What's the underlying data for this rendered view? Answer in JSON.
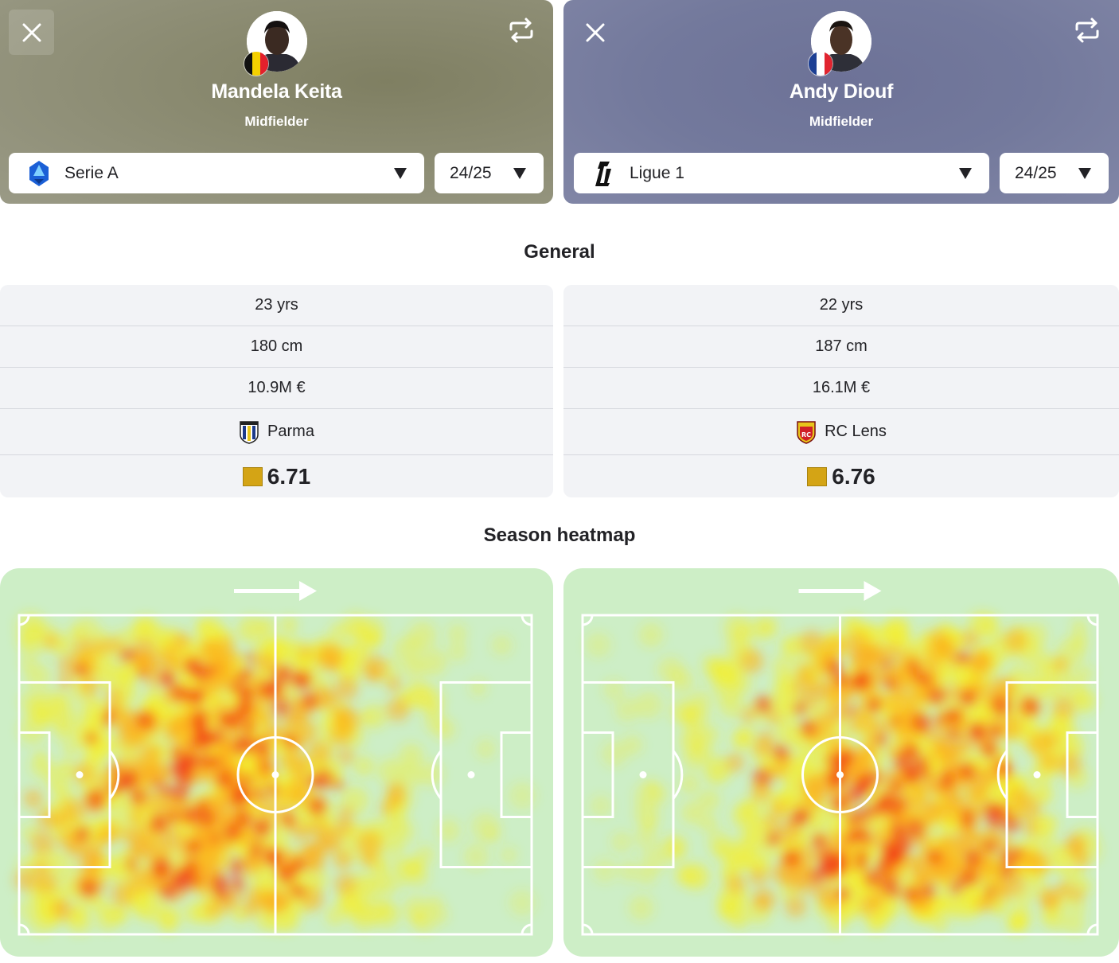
{
  "players": [
    {
      "name": "Mandela Keita",
      "position": "Midfielder",
      "league": "Serie A",
      "season": "24/25",
      "age": "23 yrs",
      "height": "180 cm",
      "value": "10.9M €",
      "team": "Parma",
      "rating": "6.71",
      "colors": {
        "rating": "#d4a415",
        "header": "#85856b"
      }
    },
    {
      "name": "Andy Diouf",
      "position": "Midfielder",
      "league": "Ligue 1",
      "season": "24/25",
      "age": "22 yrs",
      "height": "187 cm",
      "value": "16.1M €",
      "team": "RC Lens",
      "rating": "6.76",
      "colors": {
        "rating": "#d4a415",
        "header": "#70769a"
      }
    }
  ],
  "sections": {
    "general": "General",
    "heatmap": "Season heatmap"
  },
  "icons": {
    "close": "close-icon",
    "swap": "swap-icon",
    "dropdown": "caret-down-icon",
    "direction": "arrow-right-icon"
  }
}
